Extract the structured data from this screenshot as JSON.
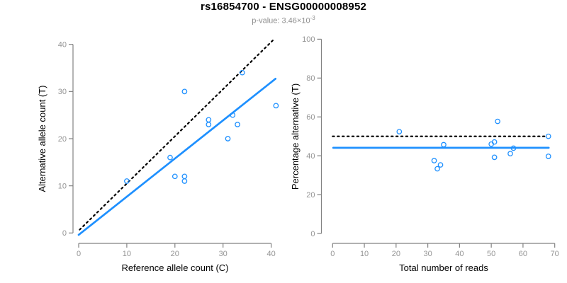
{
  "header": {
    "title": "rs16854700 - ENSG00000008952",
    "pvalue_text": "p-value: 3.46×10",
    "pvalue_exp": "-3"
  },
  "colors": {
    "accent_blue": "#1E90FF",
    "reference_line": "#000000",
    "axis": "#828282",
    "tick_label": "#949494",
    "subtitle_gray": "#8e8e8e"
  },
  "chart_data": [
    {
      "type": "scatter",
      "name": "allele-counts-panel",
      "xlabel": "Reference allele count (C)",
      "ylabel": "Alternative allele count (T)",
      "xlim": [
        0,
        40
      ],
      "ylim": [
        0,
        40
      ],
      "xticks": [
        0,
        10,
        20,
        30,
        40
      ],
      "yticks": [
        0,
        10,
        20,
        30,
        40
      ],
      "points": [
        [
          10,
          11
        ],
        [
          19,
          16
        ],
        [
          20,
          12
        ],
        [
          22,
          11
        ],
        [
          22,
          12
        ],
        [
          22,
          30
        ],
        [
          27,
          23
        ],
        [
          27,
          24
        ],
        [
          31,
          20
        ],
        [
          32,
          25
        ],
        [
          33,
          23
        ],
        [
          34,
          34
        ],
        [
          41,
          27
        ]
      ],
      "lines": [
        {
          "name": "identity-line",
          "dotted": true,
          "color": "#000000",
          "x1": 0.2,
          "y1": 0.7,
          "x2": 40.8,
          "y2": 41.3
        },
        {
          "name": "fit-line",
          "dotted": false,
          "color": "#1E90FF",
          "x1": 0.0,
          "y1": -0.4,
          "x2": 40.9,
          "y2": 32.7
        }
      ]
    },
    {
      "type": "scatter",
      "name": "percentage-panel",
      "xlabel": "Total number of reads",
      "ylabel": "Percentage alternative (T)",
      "xlim": [
        0,
        70
      ],
      "ylim": [
        0,
        100
      ],
      "xticks": [
        0,
        10,
        20,
        30,
        40,
        50,
        60,
        70
      ],
      "yticks": [
        0,
        20,
        40,
        60,
        80,
        100
      ],
      "points": [
        [
          21,
          52.4
        ],
        [
          32,
          37.5
        ],
        [
          33,
          33.3
        ],
        [
          34,
          35.3
        ],
        [
          35,
          45.7
        ],
        [
          50,
          46.0
        ],
        [
          51,
          47.1
        ],
        [
          51,
          39.2
        ],
        [
          52,
          57.7
        ],
        [
          56,
          41.1
        ],
        [
          57,
          43.9
        ],
        [
          68,
          50.0
        ],
        [
          68,
          39.7
        ]
      ],
      "lines": [
        {
          "name": "reference-line-50pct",
          "dotted": true,
          "color": "#000000",
          "x1": 0.0,
          "y1": 50.0,
          "x2": 67.3,
          "y2": 50.0
        },
        {
          "name": "mean-line",
          "dotted": false,
          "color": "#1E90FF",
          "x1": 0.2,
          "y1": 44.1,
          "x2": 68.1,
          "y2": 44.1
        }
      ]
    }
  ]
}
